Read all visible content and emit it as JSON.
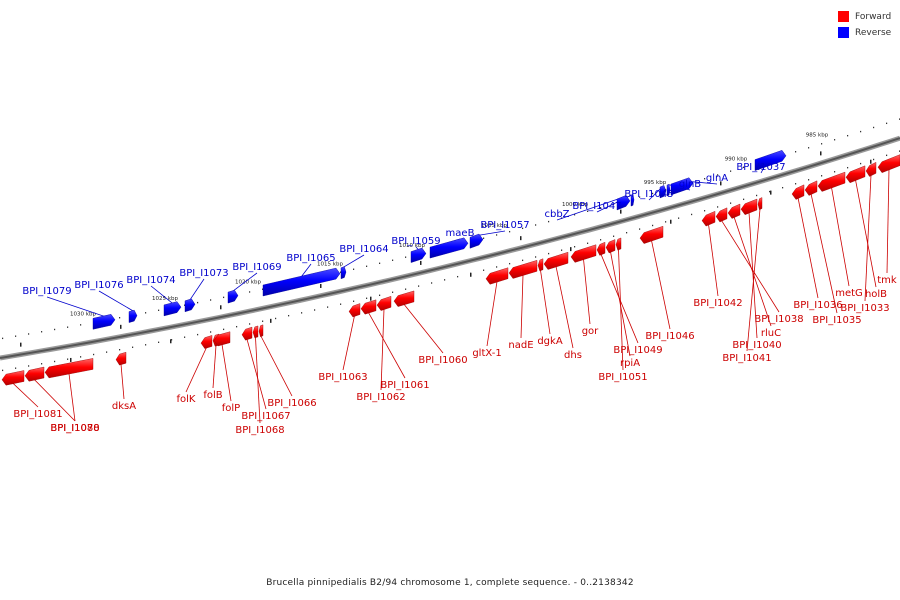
{
  "legend": {
    "forward_label": "Forward",
    "reverse_label": "Reverse",
    "forward_color": "#ff0000",
    "reverse_color": "#0000ff"
  },
  "caption": "Brucella pinnipedialis B2/94 chromosome 1, complete sequence. - 0..2138342",
  "ruler": {
    "unit": "kbp",
    "labels": [
      "1030 kbp",
      "1025 kbp",
      "1020 kbp",
      "1015 kbp",
      "1010 kbp",
      "1005 kbp",
      "1000 kbp",
      "995 kbp",
      "990 kbp",
      "985 kbp"
    ]
  },
  "genes": {
    "forward": [
      {
        "name": "BPI_I1081"
      },
      {
        "name": "BPI_I1080"
      },
      {
        "name": "BPI_I1078"
      },
      {
        "name": "dksA"
      },
      {
        "name": "folK"
      },
      {
        "name": "folB"
      },
      {
        "name": "folP"
      },
      {
        "name": "BPI_I1067"
      },
      {
        "name": "BPI_I1068"
      },
      {
        "name": "BPI_I1066"
      },
      {
        "name": "BPI_I1063"
      },
      {
        "name": "BPI_I1061"
      },
      {
        "name": "BPI_I1062"
      },
      {
        "name": "BPI_I1060"
      },
      {
        "name": "gltX-1"
      },
      {
        "name": "nadE"
      },
      {
        "name": "dgkA"
      },
      {
        "name": "dhs"
      },
      {
        "name": "gor"
      },
      {
        "name": "BPI_I1049"
      },
      {
        "name": "rpiA"
      },
      {
        "name": "BPI_I1051"
      },
      {
        "name": "BPI_I1046"
      },
      {
        "name": "BPI_I1042"
      },
      {
        "name": "BPI_I1038"
      },
      {
        "name": "rluC"
      },
      {
        "name": "BPI_I1040"
      },
      {
        "name": "BPI_I1041"
      },
      {
        "name": "BPI_I1036"
      },
      {
        "name": "BPI_I1035"
      },
      {
        "name": "metG"
      },
      {
        "name": "holB"
      },
      {
        "name": "BPI_I1033"
      },
      {
        "name": "tmk"
      }
    ],
    "reverse": [
      {
        "name": "BPI_I1079"
      },
      {
        "name": "BPI_I1076"
      },
      {
        "name": "BPI_I1074"
      },
      {
        "name": "BPI_I1073"
      },
      {
        "name": "BPI_I1069"
      },
      {
        "name": "BPI_I1065"
      },
      {
        "name": "BPI_I1064"
      },
      {
        "name": "BPI_I1059"
      },
      {
        "name": "maeB"
      },
      {
        "name": "BPI_I1057"
      },
      {
        "name": "cbbZ"
      },
      {
        "name": "BPI_I1047"
      },
      {
        "name": "BPI_I1045"
      },
      {
        "name": "glnB"
      },
      {
        "name": "glnA"
      },
      {
        "name": "BPI_I1037"
      }
    ]
  }
}
